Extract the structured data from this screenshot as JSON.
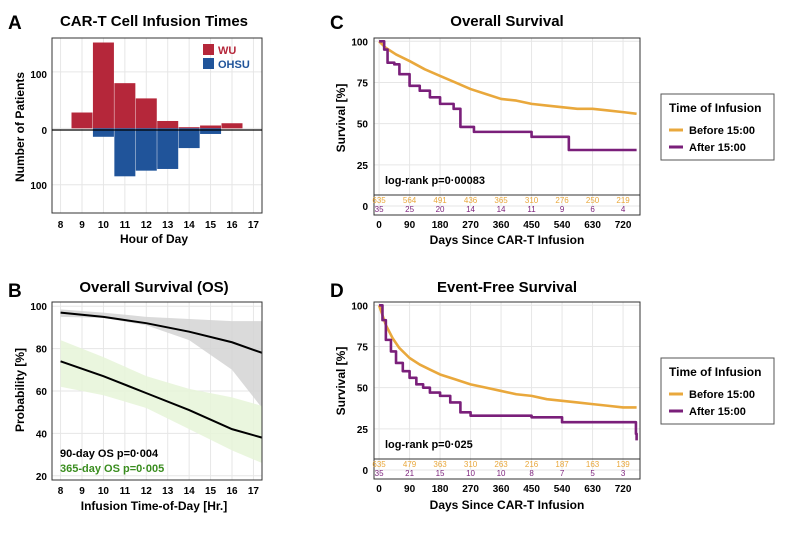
{
  "colors": {
    "wu": "#b5273a",
    "ohsu": "#20549a",
    "before": "#e9a83c",
    "after": "#7a1f7a",
    "ci_grey": "#d3d3d3",
    "ci_green": "#e6f4d8",
    "green_text": "#3a8d1f",
    "grid": "#e6e6e6"
  },
  "chart_data": [
    {
      "panel": "A",
      "type": "bar",
      "title": "CAR-T Cell Infusion Times",
      "xlabel": "Hour of Day",
      "ylabel": "Number of Patients",
      "x_ticks": [
        "8",
        "9",
        "10",
        "11",
        "12",
        "13",
        "14",
        "15",
        "16",
        "17"
      ],
      "y_tick_labels": [
        "100",
        "0",
        "100"
      ],
      "xlim": [
        7.6,
        17.4
      ],
      "ylim": [
        -150,
        160
      ],
      "legend": [
        "WU",
        "OHSU"
      ],
      "categories": [
        9,
        10,
        11,
        12,
        13,
        14,
        15,
        16
      ],
      "series": [
        {
          "name": "WU",
          "values": [
            28,
            152,
            80,
            53,
            13,
            2,
            5,
            9
          ]
        },
        {
          "name": "OHSU",
          "values": [
            0,
            -15,
            -85,
            -75,
            -72,
            -35,
            -10,
            0
          ]
        }
      ]
    },
    {
      "panel": "B",
      "type": "line",
      "title": "Overall Survival (OS)",
      "xlabel": "Infusion Time-of-Day [Hr.]",
      "ylabel": "Probability [%]",
      "x_ticks": [
        "8",
        "9",
        "10",
        "11",
        "12",
        "13",
        "14",
        "15",
        "16",
        "17"
      ],
      "y_ticks": [
        "20",
        "40",
        "60",
        "80",
        "100"
      ],
      "xlim": [
        7.6,
        17.4
      ],
      "ylim": [
        18,
        102
      ],
      "annotations": [
        "90-day OS p=0·004",
        "365-day OS p=0·005"
      ],
      "series": [
        {
          "name": "90-day OS",
          "x": [
            8,
            10,
            12,
            14,
            16,
            17.4
          ],
          "y": [
            97,
            95,
            92,
            88,
            83,
            78
          ],
          "ci_low": [
            95,
            94.5,
            91,
            84,
            70,
            52
          ],
          "ci_high": [
            98.5,
            97,
            95,
            94,
            93,
            93
          ]
        },
        {
          "name": "365-day OS",
          "x": [
            8,
            10,
            12,
            14,
            16,
            17.4
          ],
          "y": [
            74,
            67,
            59,
            51,
            42,
            38
          ],
          "ci_low": [
            62,
            58,
            52,
            42,
            32,
            26
          ],
          "ci_high": [
            84,
            76,
            67,
            61,
            57,
            53
          ]
        }
      ]
    },
    {
      "panel": "C",
      "type": "line",
      "title": "Overall Survival",
      "xlabel": "Days Since CAR-T Infusion",
      "ylabel": "Survival [%]",
      "x_ticks": [
        "0",
        "90",
        "180",
        "270",
        "360",
        "450",
        "540",
        "630",
        "720"
      ],
      "y_ticks": [
        "0",
        "25",
        "50",
        "75",
        "100"
      ],
      "xlim": [
        -15,
        770
      ],
      "ylim": [
        0,
        102
      ],
      "annotation": "log-rank p=0·00083",
      "legend_title": "Time of Infusion",
      "legend": [
        "Before 15:00",
        "After 15:00"
      ],
      "series": [
        {
          "name": "Before 15:00",
          "x": [
            0,
            20,
            50,
            90,
            135,
            180,
            225,
            270,
            315,
            360,
            405,
            450,
            495,
            540,
            585,
            630,
            675,
            720,
            760
          ],
          "y": [
            100,
            96,
            92,
            88,
            83,
            79,
            75,
            71,
            68,
            65,
            64,
            62,
            61,
            60,
            59,
            59,
            58,
            57,
            56
          ]
        },
        {
          "name": "After 15:00",
          "x": [
            0,
            15,
            25,
            45,
            60,
            90,
            120,
            150,
            180,
            200,
            220,
            240,
            280,
            420,
            450,
            540,
            560,
            760
          ],
          "y": [
            100,
            95,
            87,
            86,
            80,
            73,
            70,
            66,
            62,
            62,
            59,
            48,
            45,
            45,
            42,
            42,
            34,
            34
          ]
        }
      ],
      "risk_table": {
        "Before 15:00": [
          "635",
          "564",
          "491",
          "436",
          "365",
          "310",
          "276",
          "250",
          "219"
        ],
        "After 15:00": [
          "35",
          "25",
          "20",
          "14",
          "14",
          "11",
          "9",
          "6",
          "4"
        ]
      }
    },
    {
      "panel": "D",
      "type": "line",
      "title": "Event-Free Survival",
      "xlabel": "Days Since CAR-T Infusion",
      "ylabel": "Survival [%]",
      "x_ticks": [
        "0",
        "90",
        "180",
        "270",
        "360",
        "450",
        "540",
        "630",
        "720"
      ],
      "y_ticks": [
        "0",
        "25",
        "50",
        "75",
        "100"
      ],
      "xlim": [
        -15,
        770
      ],
      "ylim": [
        0,
        102
      ],
      "annotation": "log-rank p=0·025",
      "legend_title": "Time of Infusion",
      "legend": [
        "Before 15:00",
        "After 15:00"
      ],
      "series": [
        {
          "name": "Before 15:00",
          "x": [
            0,
            20,
            40,
            60,
            90,
            120,
            150,
            180,
            225,
            270,
            315,
            360,
            405,
            450,
            495,
            540,
            585,
            630,
            675,
            720,
            760
          ],
          "y": [
            100,
            88,
            80,
            74,
            68,
            64,
            61,
            58,
            55,
            52,
            50,
            48,
            46,
            45,
            43,
            42,
            41,
            40,
            39,
            38,
            38
          ]
        },
        {
          "name": "After 15:00",
          "x": [
            0,
            10,
            20,
            35,
            50,
            70,
            90,
            110,
            130,
            150,
            180,
            210,
            240,
            270,
            300,
            450,
            540,
            560,
            750,
            758,
            760
          ],
          "y": [
            100,
            91,
            79,
            72,
            65,
            60,
            56,
            52,
            50,
            47,
            45,
            41,
            35,
            33,
            33,
            32,
            29,
            29,
            29,
            22,
            18
          ]
        }
      ],
      "risk_table": {
        "Before 15:00": [
          "635",
          "479",
          "363",
          "310",
          "263",
          "216",
          "187",
          "163",
          "139"
        ],
        "After 15:00": [
          "35",
          "21",
          "15",
          "10",
          "10",
          "8",
          "7",
          "5",
          "3"
        ]
      }
    }
  ],
  "panel_labels": [
    "A",
    "B",
    "C",
    "D"
  ]
}
